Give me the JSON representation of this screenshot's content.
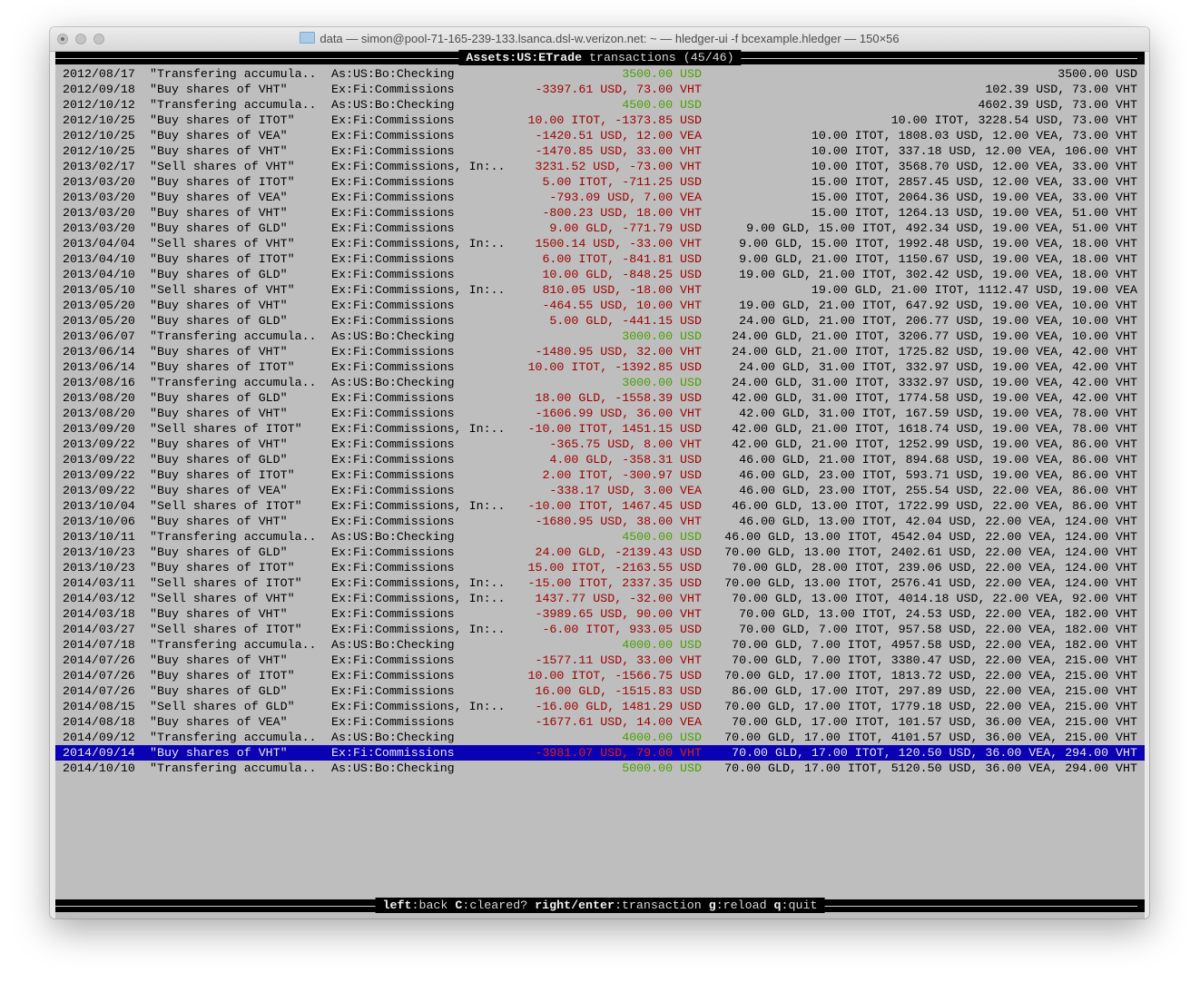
{
  "window": {
    "title": "data — simon@pool-71-165-239-133.lsanca.dsl-w.verizon.net: ~ — hledger-ui -f bcexample.hledger — 150×56"
  },
  "header": {
    "account": "Assets:US:ETrade",
    "suffix": " transactions (45/46)"
  },
  "colors": {
    "positive": "#4aa000",
    "negative": "#a00000",
    "selection": "#0a00b4",
    "background": "#bebebe"
  },
  "selected_index": 44,
  "rows": [
    {
      "date": "2012/08/17",
      "desc": "\"Transfering accumula..",
      "acct": "As:US:Bo:Checking",
      "amt": "3500.00 USD",
      "sign": "pos",
      "bal": "3500.00 USD"
    },
    {
      "date": "2012/09/18",
      "desc": "\"Buy shares of VHT\"",
      "acct": "Ex:Fi:Commissions",
      "amt": "-3397.61 USD, 73.00 VHT",
      "sign": "neg",
      "bal": "102.39 USD, 73.00 VHT"
    },
    {
      "date": "2012/10/12",
      "desc": "\"Transfering accumula..",
      "acct": "As:US:Bo:Checking",
      "amt": "4500.00 USD",
      "sign": "pos",
      "bal": "4602.39 USD, 73.00 VHT"
    },
    {
      "date": "2012/10/25",
      "desc": "\"Buy shares of ITOT\"",
      "acct": "Ex:Fi:Commissions",
      "amt": "10.00 ITOT, -1373.85 USD",
      "sign": "neg",
      "bal": "10.00 ITOT, 3228.54 USD, 73.00 VHT"
    },
    {
      "date": "2012/10/25",
      "desc": "\"Buy shares of VEA\"",
      "acct": "Ex:Fi:Commissions",
      "amt": "-1420.51 USD, 12.00 VEA",
      "sign": "neg",
      "bal": "10.00 ITOT, 1808.03 USD, 12.00 VEA, 73.00 VHT"
    },
    {
      "date": "2012/10/25",
      "desc": "\"Buy shares of VHT\"",
      "acct": "Ex:Fi:Commissions",
      "amt": "-1470.85 USD, 33.00 VHT",
      "sign": "neg",
      "bal": "10.00 ITOT, 337.18 USD, 12.00 VEA, 106.00 VHT"
    },
    {
      "date": "2013/02/17",
      "desc": "\"Sell shares of VHT\"",
      "acct": "Ex:Fi:Commissions, In:..",
      "amt": "3231.52 USD, -73.00 VHT",
      "sign": "neg",
      "bal": "10.00 ITOT, 3568.70 USD, 12.00 VEA, 33.00 VHT"
    },
    {
      "date": "2013/03/20",
      "desc": "\"Buy shares of ITOT\"",
      "acct": "Ex:Fi:Commissions",
      "amt": "5.00 ITOT, -711.25 USD",
      "sign": "neg",
      "bal": "15.00 ITOT, 2857.45 USD, 12.00 VEA, 33.00 VHT"
    },
    {
      "date": "2013/03/20",
      "desc": "\"Buy shares of VEA\"",
      "acct": "Ex:Fi:Commissions",
      "amt": "-793.09 USD, 7.00 VEA",
      "sign": "neg",
      "bal": "15.00 ITOT, 2064.36 USD, 19.00 VEA, 33.00 VHT"
    },
    {
      "date": "2013/03/20",
      "desc": "\"Buy shares of VHT\"",
      "acct": "Ex:Fi:Commissions",
      "amt": "-800.23 USD, 18.00 VHT",
      "sign": "neg",
      "bal": "15.00 ITOT, 1264.13 USD, 19.00 VEA, 51.00 VHT"
    },
    {
      "date": "2013/03/20",
      "desc": "\"Buy shares of GLD\"",
      "acct": "Ex:Fi:Commissions",
      "amt": "9.00 GLD, -771.79 USD",
      "sign": "neg",
      "bal": "9.00 GLD, 15.00 ITOT, 492.34 USD, 19.00 VEA, 51.00 VHT"
    },
    {
      "date": "2013/04/04",
      "desc": "\"Sell shares of VHT\"",
      "acct": "Ex:Fi:Commissions, In:..",
      "amt": "1500.14 USD, -33.00 VHT",
      "sign": "neg",
      "bal": "9.00 GLD, 15.00 ITOT, 1992.48 USD, 19.00 VEA, 18.00 VHT"
    },
    {
      "date": "2013/04/10",
      "desc": "\"Buy shares of ITOT\"",
      "acct": "Ex:Fi:Commissions",
      "amt": "6.00 ITOT, -841.81 USD",
      "sign": "neg",
      "bal": "9.00 GLD, 21.00 ITOT, 1150.67 USD, 19.00 VEA, 18.00 VHT"
    },
    {
      "date": "2013/04/10",
      "desc": "\"Buy shares of GLD\"",
      "acct": "Ex:Fi:Commissions",
      "amt": "10.00 GLD, -848.25 USD",
      "sign": "neg",
      "bal": "19.00 GLD, 21.00 ITOT, 302.42 USD, 19.00 VEA, 18.00 VHT"
    },
    {
      "date": "2013/05/10",
      "desc": "\"Sell shares of VHT\"",
      "acct": "Ex:Fi:Commissions, In:..",
      "amt": "810.05 USD, -18.00 VHT",
      "sign": "neg",
      "bal": "19.00 GLD, 21.00 ITOT, 1112.47 USD, 19.00 VEA"
    },
    {
      "date": "2013/05/20",
      "desc": "\"Buy shares of VHT\"",
      "acct": "Ex:Fi:Commissions",
      "amt": "-464.55 USD, 10.00 VHT",
      "sign": "neg",
      "bal": "19.00 GLD, 21.00 ITOT, 647.92 USD, 19.00 VEA, 10.00 VHT"
    },
    {
      "date": "2013/05/20",
      "desc": "\"Buy shares of GLD\"",
      "acct": "Ex:Fi:Commissions",
      "amt": "5.00 GLD, -441.15 USD",
      "sign": "neg",
      "bal": "24.00 GLD, 21.00 ITOT, 206.77 USD, 19.00 VEA, 10.00 VHT"
    },
    {
      "date": "2013/06/07",
      "desc": "\"Transfering accumula..",
      "acct": "As:US:Bo:Checking",
      "amt": "3000.00 USD",
      "sign": "pos",
      "bal": "24.00 GLD, 21.00 ITOT, 3206.77 USD, 19.00 VEA, 10.00 VHT"
    },
    {
      "date": "2013/06/14",
      "desc": "\"Buy shares of VHT\"",
      "acct": "Ex:Fi:Commissions",
      "amt": "-1480.95 USD, 32.00 VHT",
      "sign": "neg",
      "bal": "24.00 GLD, 21.00 ITOT, 1725.82 USD, 19.00 VEA, 42.00 VHT"
    },
    {
      "date": "2013/06/14",
      "desc": "\"Buy shares of ITOT\"",
      "acct": "Ex:Fi:Commissions",
      "amt": "10.00 ITOT, -1392.85 USD",
      "sign": "neg",
      "bal": "24.00 GLD, 31.00 ITOT, 332.97 USD, 19.00 VEA, 42.00 VHT"
    },
    {
      "date": "2013/08/16",
      "desc": "\"Transfering accumula..",
      "acct": "As:US:Bo:Checking",
      "amt": "3000.00 USD",
      "sign": "pos",
      "bal": "24.00 GLD, 31.00 ITOT, 3332.97 USD, 19.00 VEA, 42.00 VHT"
    },
    {
      "date": "2013/08/20",
      "desc": "\"Buy shares of GLD\"",
      "acct": "Ex:Fi:Commissions",
      "amt": "18.00 GLD, -1558.39 USD",
      "sign": "neg",
      "bal": "42.00 GLD, 31.00 ITOT, 1774.58 USD, 19.00 VEA, 42.00 VHT"
    },
    {
      "date": "2013/08/20",
      "desc": "\"Buy shares of VHT\"",
      "acct": "Ex:Fi:Commissions",
      "amt": "-1606.99 USD, 36.00 VHT",
      "sign": "neg",
      "bal": "42.00 GLD, 31.00 ITOT, 167.59 USD, 19.00 VEA, 78.00 VHT"
    },
    {
      "date": "2013/09/20",
      "desc": "\"Sell shares of ITOT\"",
      "acct": "Ex:Fi:Commissions, In:..",
      "amt": "-10.00 ITOT, 1451.15 USD",
      "sign": "neg",
      "bal": "42.00 GLD, 21.00 ITOT, 1618.74 USD, 19.00 VEA, 78.00 VHT"
    },
    {
      "date": "2013/09/22",
      "desc": "\"Buy shares of VHT\"",
      "acct": "Ex:Fi:Commissions",
      "amt": "-365.75 USD, 8.00 VHT",
      "sign": "neg",
      "bal": "42.00 GLD, 21.00 ITOT, 1252.99 USD, 19.00 VEA, 86.00 VHT"
    },
    {
      "date": "2013/09/22",
      "desc": "\"Buy shares of GLD\"",
      "acct": "Ex:Fi:Commissions",
      "amt": "4.00 GLD, -358.31 USD",
      "sign": "neg",
      "bal": "46.00 GLD, 21.00 ITOT, 894.68 USD, 19.00 VEA, 86.00 VHT"
    },
    {
      "date": "2013/09/22",
      "desc": "\"Buy shares of ITOT\"",
      "acct": "Ex:Fi:Commissions",
      "amt": "2.00 ITOT, -300.97 USD",
      "sign": "neg",
      "bal": "46.00 GLD, 23.00 ITOT, 593.71 USD, 19.00 VEA, 86.00 VHT"
    },
    {
      "date": "2013/09/22",
      "desc": "\"Buy shares of VEA\"",
      "acct": "Ex:Fi:Commissions",
      "amt": "-338.17 USD, 3.00 VEA",
      "sign": "neg",
      "bal": "46.00 GLD, 23.00 ITOT, 255.54 USD, 22.00 VEA, 86.00 VHT"
    },
    {
      "date": "2013/10/04",
      "desc": "\"Sell shares of ITOT\"",
      "acct": "Ex:Fi:Commissions, In:..",
      "amt": "-10.00 ITOT, 1467.45 USD",
      "sign": "neg",
      "bal": "46.00 GLD, 13.00 ITOT, 1722.99 USD, 22.00 VEA, 86.00 VHT"
    },
    {
      "date": "2013/10/06",
      "desc": "\"Buy shares of VHT\"",
      "acct": "Ex:Fi:Commissions",
      "amt": "-1680.95 USD, 38.00 VHT",
      "sign": "neg",
      "bal": "46.00 GLD, 13.00 ITOT, 42.04 USD, 22.00 VEA, 124.00 VHT"
    },
    {
      "date": "2013/10/11",
      "desc": "\"Transfering accumula..",
      "acct": "As:US:Bo:Checking",
      "amt": "4500.00 USD",
      "sign": "pos",
      "bal": "46.00 GLD, 13.00 ITOT, 4542.04 USD, 22.00 VEA, 124.00 VHT"
    },
    {
      "date": "2013/10/23",
      "desc": "\"Buy shares of GLD\"",
      "acct": "Ex:Fi:Commissions",
      "amt": "24.00 GLD, -2139.43 USD",
      "sign": "neg",
      "bal": "70.00 GLD, 13.00 ITOT, 2402.61 USD, 22.00 VEA, 124.00 VHT"
    },
    {
      "date": "2013/10/23",
      "desc": "\"Buy shares of ITOT\"",
      "acct": "Ex:Fi:Commissions",
      "amt": "15.00 ITOT, -2163.55 USD",
      "sign": "neg",
      "bal": "70.00 GLD, 28.00 ITOT, 239.06 USD, 22.00 VEA, 124.00 VHT"
    },
    {
      "date": "2014/03/11",
      "desc": "\"Sell shares of ITOT\"",
      "acct": "Ex:Fi:Commissions, In:..",
      "amt": "-15.00 ITOT, 2337.35 USD",
      "sign": "neg",
      "bal": "70.00 GLD, 13.00 ITOT, 2576.41 USD, 22.00 VEA, 124.00 VHT"
    },
    {
      "date": "2014/03/12",
      "desc": "\"Sell shares of VHT\"",
      "acct": "Ex:Fi:Commissions, In:..",
      "amt": "1437.77 USD, -32.00 VHT",
      "sign": "neg",
      "bal": "70.00 GLD, 13.00 ITOT, 4014.18 USD, 22.00 VEA, 92.00 VHT"
    },
    {
      "date": "2014/03/18",
      "desc": "\"Buy shares of VHT\"",
      "acct": "Ex:Fi:Commissions",
      "amt": "-3989.65 USD, 90.00 VHT",
      "sign": "neg",
      "bal": "70.00 GLD, 13.00 ITOT, 24.53 USD, 22.00 VEA, 182.00 VHT"
    },
    {
      "date": "2014/03/27",
      "desc": "\"Sell shares of ITOT\"",
      "acct": "Ex:Fi:Commissions, In:..",
      "amt": "-6.00 ITOT, 933.05 USD",
      "sign": "neg",
      "bal": "70.00 GLD, 7.00 ITOT, 957.58 USD, 22.00 VEA, 182.00 VHT"
    },
    {
      "date": "2014/07/18",
      "desc": "\"Transfering accumula..",
      "acct": "As:US:Bo:Checking",
      "amt": "4000.00 USD",
      "sign": "pos",
      "bal": "70.00 GLD, 7.00 ITOT, 4957.58 USD, 22.00 VEA, 182.00 VHT"
    },
    {
      "date": "2014/07/26",
      "desc": "\"Buy shares of VHT\"",
      "acct": "Ex:Fi:Commissions",
      "amt": "-1577.11 USD, 33.00 VHT",
      "sign": "neg",
      "bal": "70.00 GLD, 7.00 ITOT, 3380.47 USD, 22.00 VEA, 215.00 VHT"
    },
    {
      "date": "2014/07/26",
      "desc": "\"Buy shares of ITOT\"",
      "acct": "Ex:Fi:Commissions",
      "amt": "10.00 ITOT, -1566.75 USD",
      "sign": "neg",
      "bal": "70.00 GLD, 17.00 ITOT, 1813.72 USD, 22.00 VEA, 215.00 VHT"
    },
    {
      "date": "2014/07/26",
      "desc": "\"Buy shares of GLD\"",
      "acct": "Ex:Fi:Commissions",
      "amt": "16.00 GLD, -1515.83 USD",
      "sign": "neg",
      "bal": "86.00 GLD, 17.00 ITOT, 297.89 USD, 22.00 VEA, 215.00 VHT"
    },
    {
      "date": "2014/08/15",
      "desc": "\"Sell shares of GLD\"",
      "acct": "Ex:Fi:Commissions, In:..",
      "amt": "-16.00 GLD, 1481.29 USD",
      "sign": "neg",
      "bal": "70.00 GLD, 17.00 ITOT, 1779.18 USD, 22.00 VEA, 215.00 VHT"
    },
    {
      "date": "2014/08/18",
      "desc": "\"Buy shares of VEA\"",
      "acct": "Ex:Fi:Commissions",
      "amt": "-1677.61 USD, 14.00 VEA",
      "sign": "neg",
      "bal": "70.00 GLD, 17.00 ITOT, 101.57 USD, 36.00 VEA, 215.00 VHT"
    },
    {
      "date": "2014/09/12",
      "desc": "\"Transfering accumula..",
      "acct": "As:US:Bo:Checking",
      "amt": "4000.00 USD",
      "sign": "pos",
      "bal": "70.00 GLD, 17.00 ITOT, 4101.57 USD, 36.00 VEA, 215.00 VHT"
    },
    {
      "date": "2014/09/14",
      "desc": "\"Buy shares of VHT\"",
      "acct": "Ex:Fi:Commissions",
      "amt": "-3981.07 USD, 79.00 VHT",
      "sign": "neg",
      "bal": "70.00 GLD, 17.00 ITOT, 120.50 USD, 36.00 VEA, 294.00 VHT"
    },
    {
      "date": "2014/10/10",
      "desc": "\"Transfering accumula..",
      "acct": "As:US:Bo:Checking",
      "amt": "5000.00 USD",
      "sign": "pos",
      "bal": "70.00 GLD, 17.00 ITOT, 5120.50 USD, 36.00 VEA, 294.00 VHT"
    }
  ],
  "footer": {
    "keys": [
      {
        "key": "left",
        "action": "back"
      },
      {
        "key": "C",
        "action": "cleared?"
      },
      {
        "key": "right/enter",
        "action": "transaction"
      },
      {
        "key": "g",
        "action": "reload"
      },
      {
        "key": "q",
        "action": "quit"
      }
    ]
  }
}
